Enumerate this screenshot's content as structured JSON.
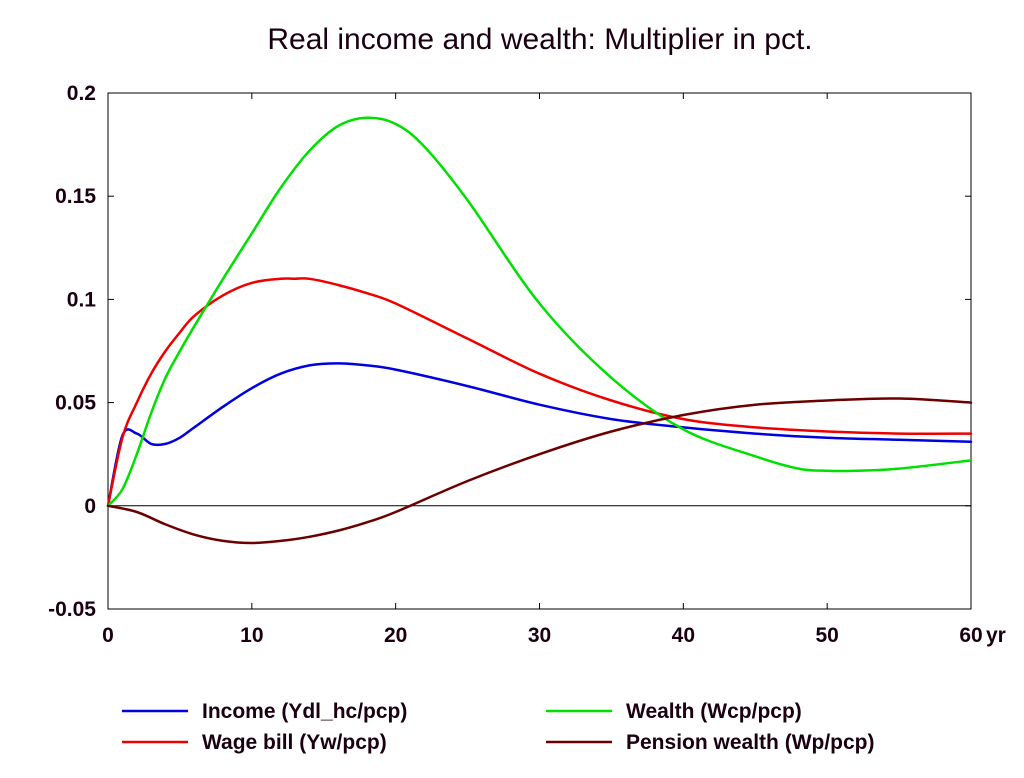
{
  "chart_data": {
    "type": "line",
    "title": "Real income and wealth: Multiplier in pct.",
    "xlabel": "",
    "ylabel": "",
    "x_unit_label": "yr",
    "xlim": [
      0,
      60
    ],
    "ylim": [
      -0.05,
      0.2
    ],
    "x_ticks": [
      0,
      10,
      20,
      30,
      40,
      50,
      60
    ],
    "x_tick_labels": [
      "0",
      "10",
      "20",
      "30",
      "40",
      "50",
      "60"
    ],
    "y_ticks": [
      -0.05,
      0,
      0.05,
      0.1,
      0.15,
      0.2
    ],
    "y_tick_labels": [
      "-0.05",
      "0",
      "0.05",
      "0.1",
      "0.15",
      "0.2"
    ],
    "grid": false,
    "zero_line": true,
    "legend_position": "bottom",
    "series": [
      {
        "name": "Income (Ydl_hc/pcp)",
        "color": "#0000e0",
        "x": [
          0,
          1,
          2,
          3,
          4,
          5,
          6,
          8,
          10,
          12,
          14,
          16,
          18,
          20,
          25,
          30,
          35,
          40,
          45,
          50,
          55,
          60
        ],
        "y": [
          0,
          0.034,
          0.035,
          0.03,
          0.03,
          0.033,
          0.038,
          0.048,
          0.057,
          0.064,
          0.068,
          0.069,
          0.068,
          0.066,
          0.058,
          0.049,
          0.042,
          0.038,
          0.035,
          0.033,
          0.032,
          0.031
        ]
      },
      {
        "name": "Wage bill (Yw/pcp)",
        "color": "#ee0000",
        "x": [
          0,
          1,
          2,
          3,
          4,
          5,
          6,
          8,
          10,
          12,
          13,
          14,
          16,
          18,
          20,
          25,
          30,
          35,
          40,
          45,
          50,
          55,
          60
        ],
        "y": [
          0,
          0.033,
          0.05,
          0.064,
          0.075,
          0.084,
          0.092,
          0.102,
          0.108,
          0.11,
          0.11,
          0.11,
          0.107,
          0.103,
          0.098,
          0.081,
          0.064,
          0.051,
          0.042,
          0.038,
          0.036,
          0.035,
          0.035
        ]
      },
      {
        "name": "Wealth (Wcp/pcp)",
        "color": "#00e000",
        "x": [
          0,
          1,
          2,
          3,
          4,
          5,
          6,
          8,
          10,
          12,
          14,
          16,
          18,
          20,
          22,
          25,
          30,
          35,
          40,
          45,
          48,
          50,
          52,
          55,
          60
        ],
        "y": [
          0,
          0.008,
          0.025,
          0.045,
          0.062,
          0.075,
          0.087,
          0.11,
          0.132,
          0.154,
          0.172,
          0.184,
          0.188,
          0.185,
          0.174,
          0.148,
          0.098,
          0.062,
          0.037,
          0.024,
          0.018,
          0.017,
          0.017,
          0.018,
          0.022
        ]
      },
      {
        "name": "Pension wealth (Wp/pcp)",
        "color": "#6b0000",
        "x": [
          0,
          2,
          4,
          6,
          8,
          10,
          12,
          14,
          16,
          18,
          20,
          25,
          30,
          35,
          40,
          45,
          50,
          55,
          60
        ],
        "y": [
          0,
          -0.003,
          -0.009,
          -0.014,
          -0.017,
          -0.018,
          -0.017,
          -0.015,
          -0.012,
          -0.008,
          -0.003,
          0.012,
          0.025,
          0.036,
          0.044,
          0.049,
          0.051,
          0.052,
          0.05
        ]
      }
    ]
  }
}
